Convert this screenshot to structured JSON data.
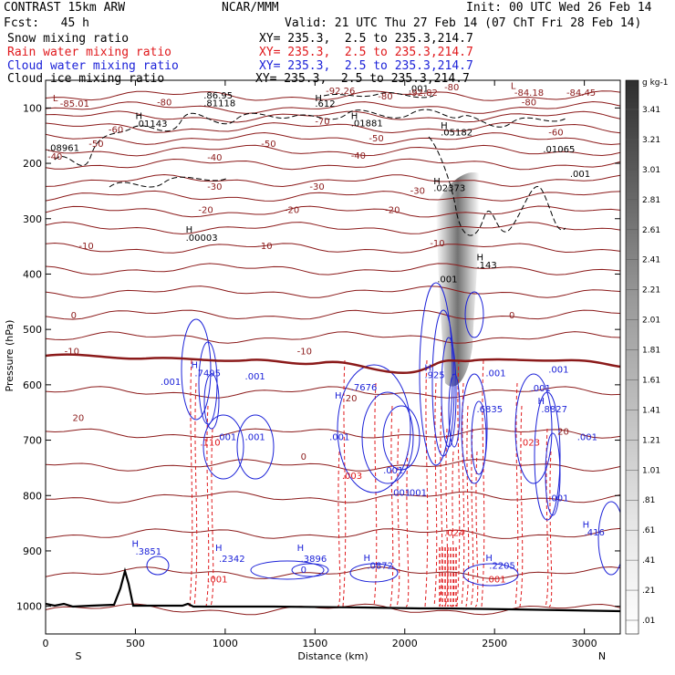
{
  "header": {
    "model": "CONTRAST 15km ARW",
    "fcst": "Fcst:   45 h",
    "org": "NCAR/MMM",
    "init": "Init: 00 UTC Wed 26 Feb 14",
    "valid": "Valid: 21 UTC Thu 27 Feb 14 (07 ChT Fri 28 Feb 14)"
  },
  "fields": [
    {
      "name": "Snow mixing ratio",
      "xy": "XY= 235.3,  2.5 to 235.3,214.7",
      "color": "#000000"
    },
    {
      "name": "Rain water mixing ratio",
      "xy": "XY= 235.3,  2.5 to 235.3,214.7",
      "color": "#e0191c"
    },
    {
      "name": "Cloud water mixing ratio",
      "xy": "XY= 235.3,  2.5 to 235.3,214.7",
      "color": "#1c22d8"
    },
    {
      "name": "Cloud ice mixing ratio",
      "xy": "XY= 235.3,  2.5 to 235.3,214.7",
      "color": "#000000"
    }
  ],
  "colorbar": {
    "unit": "g kg-1",
    "labels": [
      "3.41",
      "3.21",
      "3.01",
      "2.81",
      "2.61",
      "2.41",
      "2.21",
      "2.01",
      "1.81",
      "1.61",
      "1.41",
      "1.21",
      "1.01",
      ".81",
      ".61",
      ".41",
      ".21",
      ".01"
    ]
  },
  "chart_data": {
    "type": "contour",
    "xlabel": "Distance (km)",
    "ylabel": "Pressure (hPa)",
    "x_ticks": [
      "0",
      "500",
      "1000",
      "1500",
      "2000",
      "2500",
      "3000"
    ],
    "x_tick_values": [
      0,
      500,
      1000,
      1500,
      2000,
      2500,
      3000
    ],
    "y_ticks": [
      "100",
      "200",
      "300",
      "400",
      "500",
      "600",
      "700",
      "800",
      "900",
      "1000"
    ],
    "y_tick_values": [
      100,
      200,
      300,
      400,
      500,
      600,
      700,
      800,
      900,
      1000
    ],
    "xlim": [
      0,
      3200
    ],
    "ylim": [
      1050,
      50
    ],
    "south_label": "S",
    "north_label": "N",
    "temperature_contours": [
      {
        "label": "-85.01",
        "x": 80,
        "y": 98
      },
      {
        "label": "-80",
        "x": 620,
        "y": 95
      },
      {
        "label": "-80",
        "x": 1850,
        "y": 85
      },
      {
        "label": "-80",
        "x": 2650,
        "y": 95
      },
      {
        "label": "-70",
        "x": 1500,
        "y": 130
      },
      {
        "label": "-60",
        "x": 350,
        "y": 145
      },
      {
        "label": "-60",
        "x": 2800,
        "y": 150
      },
      {
        "label": "-50",
        "x": 240,
        "y": 170
      },
      {
        "label": "-50",
        "x": 1200,
        "y": 170
      },
      {
        "label": "-50",
        "x": 1800,
        "y": 160
      },
      {
        "label": "-40",
        "x": 10,
        "y": 193
      },
      {
        "label": "-40",
        "x": 900,
        "y": 195
      },
      {
        "label": "-40",
        "x": 1700,
        "y": 192
      },
      {
        "label": "-30",
        "x": 900,
        "y": 248
      },
      {
        "label": "-30",
        "x": 1470,
        "y": 248
      },
      {
        "label": "-30",
        "x": 2030,
        "y": 255
      },
      {
        "label": "-20",
        "x": 850,
        "y": 290
      },
      {
        "label": "-20",
        "x": 1330,
        "y": 290
      },
      {
        "label": "-20",
        "x": 1890,
        "y": 290
      },
      {
        "label": "-10",
        "x": 185,
        "y": 355
      },
      {
        "label": "-10",
        "x": 1180,
        "y": 355
      },
      {
        "label": "-10",
        "x": 2140,
        "y": 350
      },
      {
        "label": "0",
        "x": 140,
        "y": 480
      },
      {
        "label": "0",
        "x": 2580,
        "y": 480
      },
      {
        "label": "-10",
        "x": 105,
        "y": 545
      },
      {
        "label": "-10",
        "x": 1400,
        "y": 545
      },
      {
        "label": "20",
        "x": 150,
        "y": 665
      },
      {
        "label": "20",
        "x": 1670,
        "y": 630
      },
      {
        "label": "20",
        "x": 2850,
        "y": 690
      },
      {
        "label": "0",
        "x": 1420,
        "y": 735
      }
    ],
    "extrema_labels": [
      {
        "label": "L",
        "x": 40,
        "y": 88
      },
      {
        "label": ".86.95",
        "x": 880,
        "y": 83
      },
      {
        "label": ".81118",
        "x": 880,
        "y": 97
      },
      {
        "label": "H",
        "x": 1500,
        "y": 88
      },
      {
        "label": ".612",
        "x": 1500,
        "y": 98
      },
      {
        "label": "-92.26",
        "x": 1560,
        "y": 75
      },
      {
        "label": ".001",
        "x": 2020,
        "y": 71
      },
      {
        "label": "-92.82",
        "x": 2020,
        "y": 78
      },
      {
        "label": "-80",
        "x": 2220,
        "y": 68
      },
      {
        "label": "L",
        "x": 2590,
        "y": 66
      },
      {
        "label": "-84.18",
        "x": 2610,
        "y": 78
      },
      {
        "label": "-84.45",
        "x": 2900,
        "y": 78
      },
      {
        "label": "H",
        "x": 500,
        "y": 120
      },
      {
        "label": ".01143",
        "x": 500,
        "y": 134
      },
      {
        "label": "H",
        "x": 1700,
        "y": 120
      },
      {
        "label": ".01881",
        "x": 1700,
        "y": 133
      },
      {
        "label": "H",
        "x": 2200,
        "y": 137
      },
      {
        "label": ".05182",
        "x": 2200,
        "y": 150
      },
      {
        "label": ".08961",
        "x": 10,
        "y": 178
      },
      {
        "label": ".01065",
        "x": 2770,
        "y": 180
      },
      {
        "label": ".001",
        "x": 2920,
        "y": 225
      },
      {
        "label": "H",
        "x": 2160,
        "y": 238
      },
      {
        "label": ".02373",
        "x": 2160,
        "y": 250
      },
      {
        "label": "H",
        "x": 780,
        "y": 325
      },
      {
        "label": ".00003",
        "x": 780,
        "y": 340
      },
      {
        "label": "H",
        "x": 2400,
        "y": 375
      },
      {
        "label": ".143",
        "x": 2400,
        "y": 389
      },
      {
        "label": ".001",
        "x": 2180,
        "y": 415
      },
      {
        "label": "H",
        "x": 810,
        "y": 570
      },
      {
        "label": ".7495",
        "x": 830,
        "y": 585
      },
      {
        "label": ".001",
        "x": 640,
        "y": 600
      },
      {
        "label": ".001",
        "x": 1110,
        "y": 590
      },
      {
        "label": "H",
        "x": 2110,
        "y": 575
      },
      {
        "label": ".925",
        "x": 2110,
        "y": 588
      },
      {
        "label": ".001",
        "x": 2450,
        "y": 585
      },
      {
        "label": ".001",
        "x": 2800,
        "y": 578
      },
      {
        "label": ".7676",
        "x": 1700,
        "y": 610
      },
      {
        "label": "H",
        "x": 1610,
        "y": 625
      },
      {
        "label": ".001",
        "x": 2700,
        "y": 612
      },
      {
        "label": "H",
        "x": 2740,
        "y": 635
      },
      {
        "label": ".8827",
        "x": 2760,
        "y": 650
      },
      {
        "label": ".6835",
        "x": 2400,
        "y": 650
      },
      {
        "label": ".001",
        "x": 950,
        "y": 700
      },
      {
        "label": ".001",
        "x": 1110,
        "y": 700
      },
      {
        "label": ".001",
        "x": 1580,
        "y": 700
      },
      {
        "label": ".001",
        "x": 2960,
        "y": 700
      },
      {
        "label": ".110",
        "x": 860,
        "y": 710
      },
      {
        "label": ".023",
        "x": 2640,
        "y": 710
      },
      {
        "label": ".003",
        "x": 1650,
        "y": 770
      },
      {
        "label": ".001",
        "x": 1880,
        "y": 760
      },
      {
        "label": ".001",
        "x": 1920,
        "y": 800
      },
      {
        "label": ".001",
        "x": 2010,
        "y": 800
      },
      {
        "label": ".001",
        "x": 2800,
        "y": 810
      },
      {
        "label": ".024",
        "x": 2220,
        "y": 873
      },
      {
        "label": "H",
        "x": 2990,
        "y": 858
      },
      {
        "label": ".416",
        "x": 3000,
        "y": 872
      },
      {
        "label": "H",
        "x": 480,
        "y": 893
      },
      {
        "label": ".3851",
        "x": 500,
        "y": 907
      },
      {
        "label": "H",
        "x": 945,
        "y": 900
      },
      {
        "label": ".2342",
        "x": 965,
        "y": 920
      },
      {
        "label": "H",
        "x": 1400,
        "y": 900
      },
      {
        "label": ".3896",
        "x": 1420,
        "y": 920
      },
      {
        "label": "H",
        "x": 1770,
        "y": 918
      },
      {
        "label": ".0872",
        "x": 1790,
        "y": 932
      },
      {
        "label": "H",
        "x": 2450,
        "y": 918
      },
      {
        "label": ".2205",
        "x": 2470,
        "y": 932
      },
      {
        "label": ".001",
        "x": 900,
        "y": 957
      },
      {
        "label": ".001",
        "x": 2450,
        "y": 957
      },
      {
        "label": "0",
        "x": 1420,
        "y": 940
      }
    ]
  }
}
